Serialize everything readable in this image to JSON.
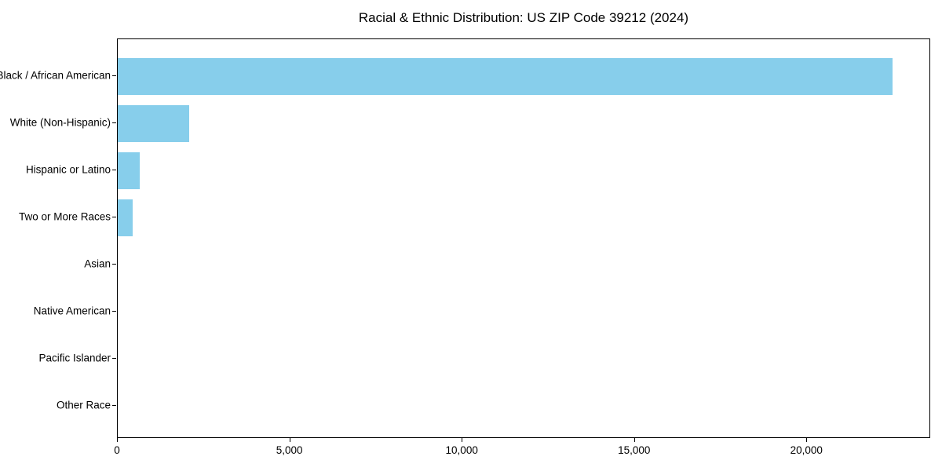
{
  "chart_data": {
    "type": "bar",
    "orientation": "horizontal",
    "title": "Racial & Ethnic Distribution: US ZIP Code 39212 (2024)",
    "categories": [
      "Black / African American",
      "White (Non-Hispanic)",
      "Hispanic or Latino",
      "Two or More Races",
      "Asian",
      "Native American",
      "Pacific Islander",
      "Other Race"
    ],
    "values": [
      22470,
      2070,
      640,
      430,
      0,
      0,
      0,
      0
    ],
    "xlabel": "",
    "ylabel": "",
    "xlim": [
      0,
      23590
    ],
    "xticks": [
      0,
      5000,
      10000,
      15000,
      20000
    ],
    "xtick_labels": [
      "0",
      "5,000",
      "10,000",
      "15,000",
      "20,000"
    ],
    "bar_color": "#87CEEB",
    "text_color": "#000000",
    "background_color": "#ffffff",
    "grid": false,
    "legend": null
  }
}
